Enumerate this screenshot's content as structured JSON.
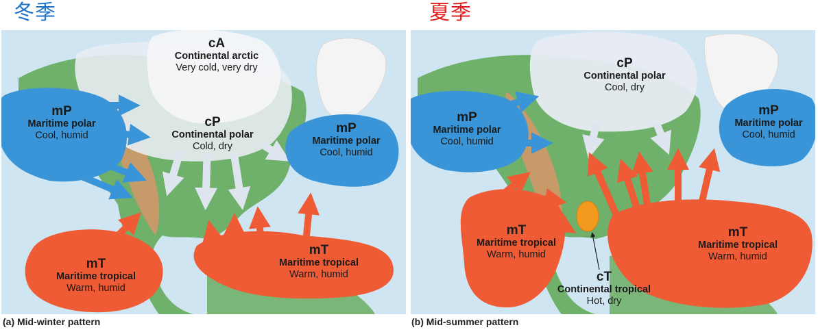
{
  "winter": {
    "heading": "冬季",
    "heading_color": "#1e73c8",
    "caption": "(a) Mid-winter pattern",
    "masses": [
      {
        "code": "cA",
        "name": "Continental arctic",
        "desc": "Very cold, very dry",
        "kind": "cold-continental"
      },
      {
        "code": "cP",
        "name": "Continental polar",
        "desc": "Cold, dry",
        "kind": "cold-continental"
      },
      {
        "code": "mP",
        "name": "Maritime polar",
        "desc": "Cool, humid",
        "kind": "maritime-polar"
      },
      {
        "code": "mP",
        "name": "Maritime polar",
        "desc": "Cool, humid",
        "kind": "maritime-polar"
      },
      {
        "code": "mT",
        "name": "Maritime tropical",
        "desc": "Warm, humid",
        "kind": "maritime-tropical"
      },
      {
        "code": "mT",
        "name": "Maritime tropical",
        "desc": "Warm, humid",
        "kind": "maritime-tropical"
      }
    ]
  },
  "summer": {
    "heading": "夏季",
    "heading_color": "#e02020",
    "caption": "(b) Mid-summer pattern",
    "masses": [
      {
        "code": "cP",
        "name": "Continental polar",
        "desc": "Cool, dry",
        "kind": "cold-continental"
      },
      {
        "code": "mP",
        "name": "Maritime polar",
        "desc": "Cool, humid",
        "kind": "maritime-polar"
      },
      {
        "code": "mP",
        "name": "Maritime polar",
        "desc": "Cool, humid",
        "kind": "maritime-polar"
      },
      {
        "code": "mT",
        "name": "Maritime tropical",
        "desc": "Warm, humid",
        "kind": "maritime-tropical"
      },
      {
        "code": "mT",
        "name": "Maritime tropical",
        "desc": "Warm, humid",
        "kind": "maritime-tropical"
      },
      {
        "code": "cT",
        "name": "Continental tropical",
        "desc": "Hot, dry",
        "kind": "continental-tropical"
      }
    ]
  },
  "colors": {
    "ocean": "#cfe6f2",
    "land_green": "#6fb06a",
    "mountains": "#c79a6a",
    "greenland": "#f4f4f4",
    "cold_continental": "#e8ecf3",
    "maritime_polar": "#3a95d8",
    "maritime_tropical": "#ee5b35",
    "continental_tropical": "#f39a1e"
  }
}
